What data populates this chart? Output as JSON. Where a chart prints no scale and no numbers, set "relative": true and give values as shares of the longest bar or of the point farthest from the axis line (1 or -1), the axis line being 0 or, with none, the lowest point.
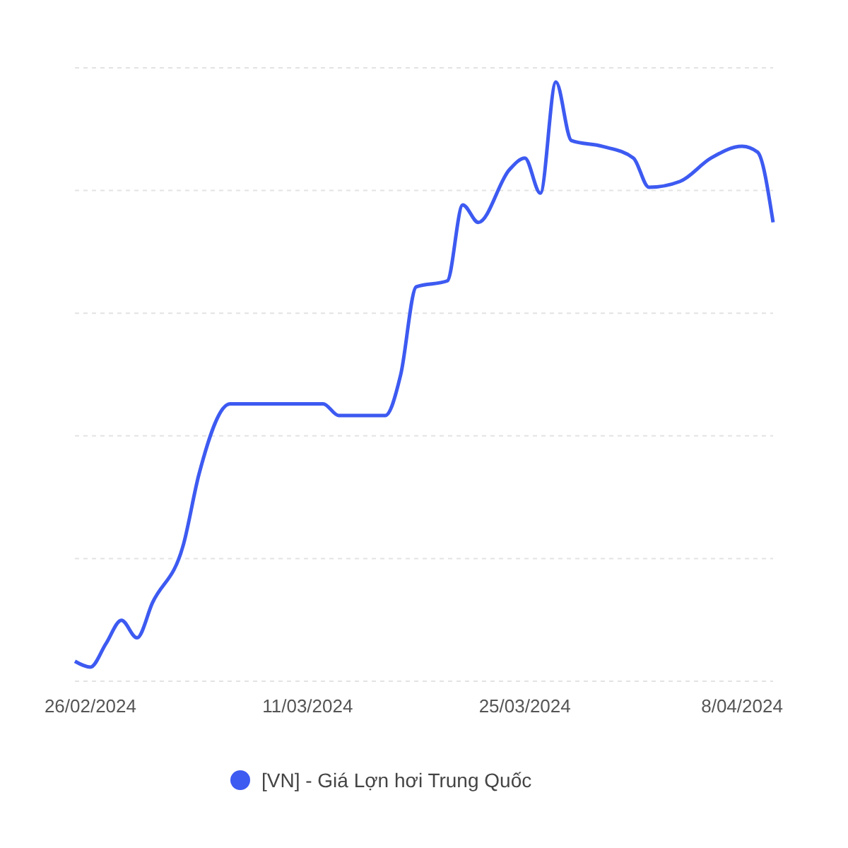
{
  "chart_data": {
    "type": "line",
    "relative": true,
    "grid": "y",
    "legend": "bottom",
    "line_style": "solid",
    "x": [
      "2024-02-25",
      "2024-02-26",
      "2024-02-27",
      "2024-02-28",
      "2024-02-29",
      "2024-03-01",
      "2024-03-03",
      "2024-03-04",
      "2024-03-06",
      "2024-03-12",
      "2024-03-13",
      "2024-03-16",
      "2024-03-17",
      "2024-03-18",
      "2024-03-20",
      "2024-03-21",
      "2024-03-22",
      "2024-03-24",
      "2024-03-25",
      "2024-03-26",
      "2024-03-27",
      "2024-03-28",
      "2024-03-30",
      "2024-04-01",
      "2024-04-02",
      "2024-04-04",
      "2024-04-06",
      "2024-04-08",
      "2024-04-09",
      "2024-04-10"
    ],
    "xlim": [
      "2024-02-25",
      "2024-04-10"
    ],
    "xticks": [
      {
        "value": "2024-02-26",
        "label": "26/02/2024"
      },
      {
        "value": "2024-03-11",
        "label": "11/03/2024"
      },
      {
        "value": "2024-03-25",
        "label": "25/03/2024"
      },
      {
        "value": "2024-04-08",
        "label": "8/04/2024"
      }
    ],
    "series": [
      {
        "name": "[VN] - Giá Lợn hơi Trung Quốc",
        "color": "#3d5af1",
        "values": [
          0.01,
          0,
          0.04,
          0.08,
          0.05,
          0.11,
          0.21,
          0.33,
          0.45,
          0.45,
          0.43,
          0.43,
          0.5,
          0.65,
          0.66,
          0.79,
          0.76,
          0.85,
          0.87,
          0.81,
          1,
          0.9,
          0.89,
          0.87,
          0.82,
          0.83,
          0.87,
          0.89,
          0.88,
          0.76
        ]
      }
    ]
  }
}
